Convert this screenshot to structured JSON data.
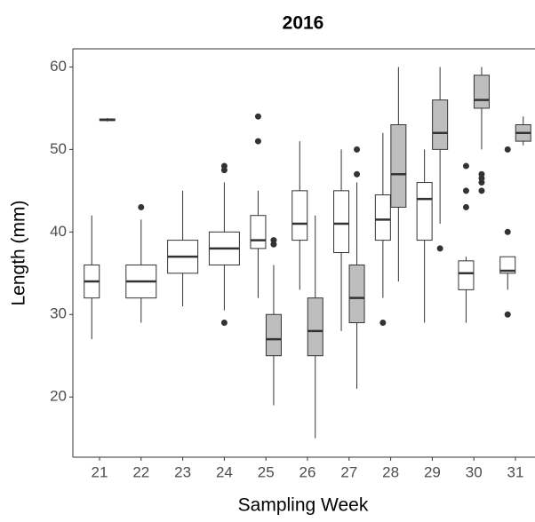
{
  "chart_data": {
    "type": "boxplot",
    "title": "2016",
    "x_label": "Sampling Week",
    "y_label": "Length (mm)",
    "categories": [
      "21",
      "22",
      "23",
      "24",
      "25",
      "26",
      "27",
      "28",
      "29",
      "30",
      "31"
    ],
    "ylim": [
      12.7,
      62.2
    ],
    "yticks": [
      20,
      30,
      40,
      50,
      60
    ],
    "grid": false,
    "series": [
      {
        "color": "#ffffff",
        "values": [
          {
            "min": 27,
            "q1": 32,
            "median": 34,
            "q3": 36,
            "max": 42,
            "outliers": []
          },
          {
            "min": 29,
            "q1": 32,
            "median": 34,
            "q3": 36,
            "max": 41.5,
            "outliers": [
              43
            ]
          },
          {
            "min": 31,
            "q1": 35,
            "median": 37,
            "q3": 39,
            "max": 45,
            "outliers": []
          },
          {
            "min": 30.5,
            "q1": 36,
            "median": 38,
            "q3": 40,
            "max": 46,
            "outliers": [
              29,
              47.5,
              48
            ]
          },
          {
            "min": 32,
            "q1": 38,
            "median": 39,
            "q3": 42,
            "max": 45,
            "outliers": [
              51,
              54
            ]
          },
          {
            "min": 33,
            "q1": 39,
            "median": 41,
            "q3": 45,
            "max": 51,
            "outliers": []
          },
          {
            "min": 28,
            "q1": 37.5,
            "median": 41,
            "q3": 45,
            "max": 50,
            "outliers": []
          },
          {
            "min": 32,
            "q1": 39,
            "median": 41.5,
            "q3": 44.5,
            "max": 52,
            "outliers": [
              29
            ]
          },
          {
            "min": 29,
            "q1": 39,
            "median": 44,
            "q3": 46,
            "max": 50,
            "outliers": []
          },
          {
            "min": 29,
            "q1": 33,
            "median": 35,
            "q3": 36.5,
            "max": 37,
            "outliers": [
              43,
              45,
              48
            ]
          },
          {
            "min": 33,
            "q1": 35,
            "median": 35.3,
            "q3": 37,
            "max": 37,
            "outliers": [
              30,
              40,
              50
            ]
          }
        ]
      },
      {
        "color": "#bebebe",
        "values": [
          {
            "min": 53.4,
            "q1": 53.5,
            "median": 53.6,
            "q3": 53.7,
            "max": 53.8,
            "outliers": []
          },
          null,
          null,
          null,
          {
            "min": 19,
            "q1": 25,
            "median": 27,
            "q3": 30,
            "max": 36,
            "outliers": [
              38.5,
              39
            ]
          },
          {
            "min": 15,
            "q1": 25,
            "median": 28,
            "q3": 32,
            "max": 42,
            "outliers": []
          },
          {
            "min": 21,
            "q1": 29,
            "median": 32,
            "q3": 36,
            "max": 46,
            "outliers": [
              47,
              50
            ]
          },
          {
            "min": 34,
            "q1": 43,
            "median": 47,
            "q3": 53,
            "max": 60,
            "outliers": []
          },
          {
            "min": 41,
            "q1": 50,
            "median": 52,
            "q3": 56,
            "max": 60,
            "outliers": [
              38
            ]
          },
          {
            "min": 50,
            "q1": 55,
            "median": 56,
            "q3": 59,
            "max": 60,
            "outliers": [
              45,
              46,
              46.5,
              47
            ]
          },
          {
            "min": 50.5,
            "q1": 51,
            "median": 52,
            "q3": 53,
            "max": 54,
            "outliers": []
          }
        ]
      }
    ]
  }
}
